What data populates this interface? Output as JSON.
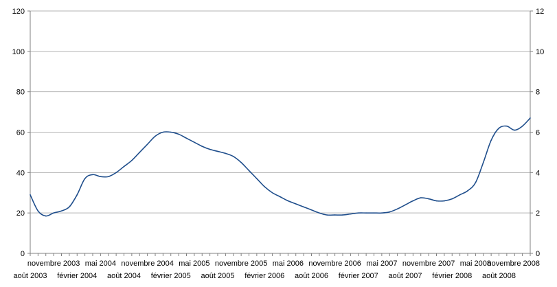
{
  "chart_data": {
    "type": "line",
    "title": "",
    "xlabel": "",
    "ylabel": "",
    "ylim": [
      0,
      120
    ],
    "y_ticks": [
      0,
      20,
      40,
      60,
      80,
      100,
      120
    ],
    "y2lim": [
      0,
      12
    ],
    "y2_ticks": [
      0,
      2,
      4,
      6,
      8,
      10,
      12
    ],
    "grid": true,
    "legend": "none",
    "colors": {
      "line": "#1f4e8c",
      "grid": "#b3b3b3",
      "axis": "#808080"
    },
    "x_tick_labels_row1": [
      "novembre 2003",
      "mai 2004",
      "novembre 2004",
      "mai 2005",
      "novembre 2005",
      "mai 2006",
      "novembre 2006",
      "mai 2007",
      "novembre 2007",
      "mai 2008",
      "novembre 2008"
    ],
    "x_tick_labels_row2": [
      "août 2003",
      "février 2004",
      "août 2004",
      "février 2005",
      "août 2005",
      "février 2006",
      "août 2006",
      "février 2007",
      "août 2007",
      "février 2008",
      "août 2008"
    ],
    "series": [
      {
        "x": [
          "2003-08",
          "2003-09",
          "2003-10",
          "2003-11",
          "2003-12",
          "2004-01",
          "2004-02",
          "2004-03",
          "2004-04",
          "2004-05",
          "2004-06",
          "2004-07",
          "2004-08",
          "2004-09",
          "2004-10",
          "2004-11",
          "2004-12",
          "2005-01",
          "2005-02",
          "2005-03",
          "2005-04",
          "2005-05",
          "2005-06",
          "2005-07",
          "2005-08",
          "2005-09",
          "2005-10",
          "2005-11",
          "2005-12",
          "2006-01",
          "2006-02",
          "2006-03",
          "2006-04",
          "2006-05",
          "2006-06",
          "2006-07",
          "2006-08",
          "2006-09",
          "2006-10",
          "2006-11",
          "2006-12",
          "2007-01",
          "2007-02",
          "2007-03",
          "2007-04",
          "2007-05",
          "2007-06",
          "2007-07",
          "2007-08",
          "2007-09",
          "2007-10",
          "2007-11",
          "2007-12",
          "2008-01",
          "2008-02",
          "2008-03",
          "2008-04",
          "2008-05",
          "2008-06",
          "2008-07",
          "2008-08",
          "2008-09",
          "2008-10",
          "2008-11",
          "2008-12"
        ],
        "values": [
          29,
          21,
          18.5,
          20,
          21,
          23,
          29,
          37,
          39,
          38,
          38,
          40,
          43,
          46,
          50,
          54,
          58,
          60,
          60,
          59,
          57,
          55,
          53,
          51.5,
          50.5,
          49.5,
          48,
          45,
          41,
          37,
          33,
          30,
          28,
          26,
          24.5,
          23,
          21.5,
          20,
          19,
          19,
          19,
          19.5,
          20,
          20,
          20,
          20,
          20.5,
          22,
          24,
          26,
          27.5,
          27,
          26,
          26,
          27,
          29,
          31,
          35,
          45,
          56,
          62,
          63,
          61,
          63,
          67
        ]
      }
    ]
  }
}
